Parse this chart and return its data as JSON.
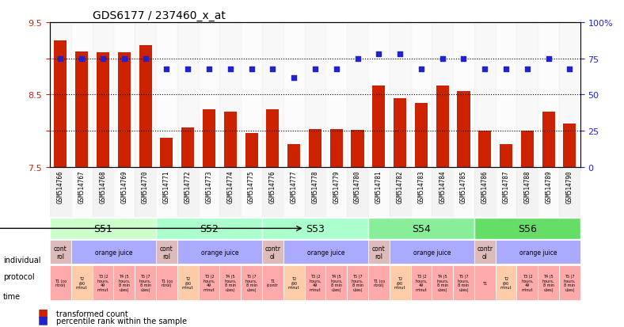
{
  "title": "GDS6177 / 237460_x_at",
  "samples": [
    "GSM514766",
    "GSM514767",
    "GSM514768",
    "GSM514769",
    "GSM514770",
    "GSM514771",
    "GSM514772",
    "GSM514773",
    "GSM514774",
    "GSM514775",
    "GSM514776",
    "GSM514777",
    "GSM514778",
    "GSM514779",
    "GSM514780",
    "GSM514781",
    "GSM514782",
    "GSM514783",
    "GSM514784",
    "GSM514785",
    "GSM514786",
    "GSM514787",
    "GSM514788",
    "GSM514789",
    "GSM514790"
  ],
  "transformed_count": [
    9.25,
    9.1,
    9.08,
    9.08,
    9.18,
    7.9,
    8.05,
    8.3,
    8.27,
    7.97,
    8.3,
    7.82,
    8.02,
    8.02,
    8.01,
    8.62,
    8.45,
    8.38,
    8.62,
    8.55,
    8.0,
    7.82,
    8.0,
    8.27,
    8.1
  ],
  "percentile_rank": [
    75,
    75,
    75,
    75,
    75,
    68,
    68,
    68,
    68,
    68,
    68,
    62,
    68,
    68,
    75,
    78,
    78,
    68,
    75,
    75,
    68,
    68,
    68,
    75,
    68
  ],
  "ylim_left": [
    7.5,
    9.5
  ],
  "ylim_right": [
    0,
    100
  ],
  "bar_color": "#cc2200",
  "dot_color": "#2222cc",
  "grid_color": "#000000",
  "individuals": [
    {
      "label": "S51",
      "start": 0,
      "end": 4,
      "color": "#ccffcc"
    },
    {
      "label": "S52",
      "start": 5,
      "end": 9,
      "color": "#aaffcc"
    },
    {
      "label": "S53",
      "start": 10,
      "end": 14,
      "color": "#aaffcc"
    },
    {
      "label": "S54",
      "start": 15,
      "end": 19,
      "color": "#88ee99"
    },
    {
      "label": "S56",
      "start": 20,
      "end": 24,
      "color": "#66dd66"
    }
  ],
  "protocols": [
    {
      "label": "cont\nrol",
      "start": 0,
      "end": 0,
      "color": "#ddbbbb"
    },
    {
      "label": "orange juice",
      "start": 1,
      "end": 4,
      "color": "#aaaaff"
    },
    {
      "label": "cont\nrol",
      "start": 5,
      "end": 5,
      "color": "#ddbbbb"
    },
    {
      "label": "orange juice",
      "start": 6,
      "end": 9,
      "color": "#aaaaff"
    },
    {
      "label": "contr\nol",
      "start": 10,
      "end": 10,
      "color": "#ddbbbb"
    },
    {
      "label": "orange juice",
      "start": 11,
      "end": 14,
      "color": "#aaaaff"
    },
    {
      "label": "cont\nrol",
      "start": 15,
      "end": 15,
      "color": "#ddbbbb"
    },
    {
      "label": "orange juice",
      "start": 16,
      "end": 19,
      "color": "#aaaaff"
    },
    {
      "label": "contr\nol",
      "start": 20,
      "end": 20,
      "color": "#ddbbbb"
    },
    {
      "label": "orange juice",
      "start": 21,
      "end": 24,
      "color": "#aaaaff"
    }
  ],
  "times": [
    "T1 (co\nntrol)",
    "T2\n(90\nminut",
    "T3 (2\nhours,\n49\nminut",
    "T4 (5\nhours,\n8 min\nutes)",
    "T5 (7\nhours,\n8 min\nutes)",
    "T1 (co\nntrol)",
    "T2\n(90\nminut",
    "T3 (2\nhours,\n49\nminut",
    "T4 (5\nhours,\n8 min\nutes)",
    "T5 (7\nhours,\n8 min\nutes)",
    "T1\n(contr",
    "T2\n(90\nminut",
    "T3 (2\nhours,\n49\nminut",
    "T4 (5\nhours,\n8 min\nutes)",
    "T5 (7\nhours,\n8 min\nutes)",
    "T1 (co\nntrol)",
    "T2\n(90\nminut",
    "T3 (2\nhours,\n49\nminut",
    "T4 (5\nhours,\n8 min\nutes)",
    "T5 (7\nhours,\n8 min\nutes)",
    "T1",
    "T2\n(90\nminut",
    "T3 (2\nhours,\n49\nminut",
    "T4 (5\nhours,\n8 min\nutes)",
    "T5 (7\nhours,\n8 min\nutes)"
  ],
  "time_colors": [
    "#ffaaaa",
    "#ffccaa",
    "#ffaaaa",
    "#ffaaaa",
    "#ffaaaa",
    "#ffaaaa",
    "#ffccaa",
    "#ffaaaa",
    "#ffaaaa",
    "#ffaaaa",
    "#ffaaaa",
    "#ffccaa",
    "#ffaaaa",
    "#ffaaaa",
    "#ffaaaa",
    "#ffaaaa",
    "#ffccaa",
    "#ffaaaa",
    "#ffaaaa",
    "#ffaaaa",
    "#ffaaaa",
    "#ffccaa",
    "#ffaaaa",
    "#ffaaaa",
    "#ffaaaa"
  ]
}
